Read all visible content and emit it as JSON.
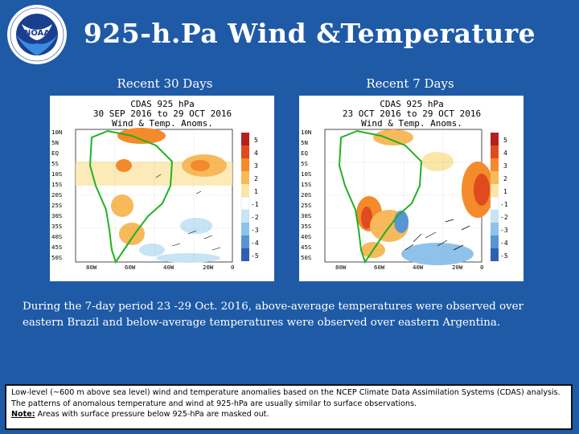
{
  "logo_text": "NOAA",
  "logo_ring_text": "NATIONAL OCEANIC AND ATMOSPHERIC ADMINISTRATION · U.S. DEPARTMENT OF COMMERCE",
  "title": "925-h.Pa Wind &Temperature",
  "panels": [
    {
      "subtitle": "Recent 30 Days",
      "header_line1": "CDAS 925 hPa",
      "header_line2": "30 SEP 2016 to 29 OCT 2016",
      "header_line3": "Wind & Temp. Anoms."
    },
    {
      "subtitle": "Recent 7 Days",
      "header_line1": "CDAS 925 hPa",
      "header_line2": "23 OCT 2016 to 29 OCT 2016",
      "header_line3": "Wind & Temp. Anoms."
    }
  ],
  "map": {
    "lat_labels": [
      "10N",
      "5N",
      "EQ",
      "5S",
      "10S",
      "15S",
      "20S",
      "25S",
      "30S",
      "35S",
      "40S",
      "45S",
      "50S"
    ],
    "lon_labels": [
      "80W",
      "60W",
      "40W",
      "20W",
      "0"
    ],
    "legend_labels": [
      "5",
      "4",
      "3",
      "2",
      "1",
      "-1",
      "-2",
      "-3",
      "-4",
      "-5"
    ],
    "legend_colors": [
      "#b41f1f",
      "#e04a1f",
      "#f58a2a",
      "#f8b95a",
      "#fbe6a8",
      "#ffffff",
      "#c6e4f5",
      "#8fc2ea",
      "#5795d4",
      "#2f5fb3"
    ]
  },
  "description": "During the 7-day period 23 -29 Oct. 2016, above-average temperatures were observed over eastern Brazil and below-average temperatures were observed over eastern Argentina.",
  "note": {
    "line1": "Low-level (~600 m above sea level) wind and temperature anomalies based on the NCEP Climate Data Assimilation Systems (CDAS) analysis. The patterns of anomalous temperature and wind at 925-hPa are usually similar to surface observations.",
    "label": "Note:",
    "line2": " Areas with surface pressure below 925-hPa are masked out."
  }
}
